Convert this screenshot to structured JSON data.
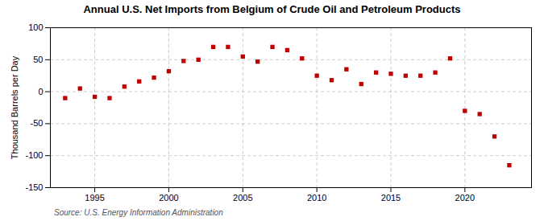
{
  "chart_data": {
    "type": "scatter",
    "title": "Annual U.S. Net Imports from Belgium of Crude Oil and Petroleum Products",
    "ylabel": "Thousand Barrels per Day",
    "source": "Source: U.S. Energy Information Administration",
    "x": [
      1993,
      1994,
      1995,
      1996,
      1997,
      1998,
      1999,
      2000,
      2001,
      2002,
      2003,
      2004,
      2005,
      2006,
      2007,
      2008,
      2009,
      2010,
      2011,
      2012,
      2013,
      2014,
      2015,
      2016,
      2017,
      2018,
      2019,
      2020,
      2021,
      2022,
      2023
    ],
    "values": [
      -10,
      5,
      -8,
      -10,
      8,
      16,
      22,
      32,
      48,
      50,
      70,
      70,
      55,
      47,
      70,
      65,
      52,
      25,
      18,
      35,
      12,
      30,
      28,
      25,
      25,
      30,
      52,
      -30,
      -35,
      -70,
      -115
    ],
    "color": "#c00000",
    "marker": "square",
    "xlim": [
      1992,
      2024.5
    ],
    "xticks": [
      1995,
      2000,
      2005,
      2010,
      2015,
      2020
    ],
    "ylim": [
      -150,
      100
    ],
    "yticks": [
      -150,
      -100,
      -50,
      0,
      50,
      100
    ],
    "grid": true
  }
}
